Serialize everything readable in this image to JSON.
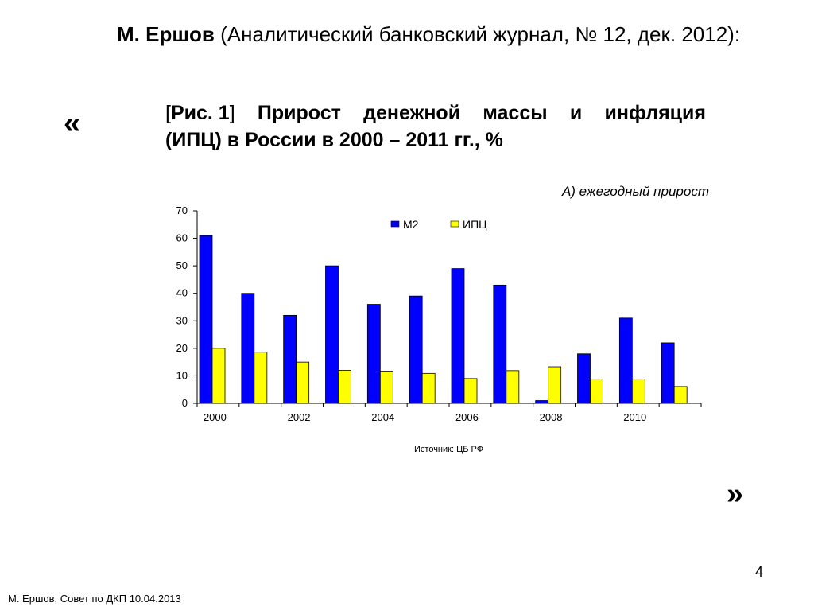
{
  "header": {
    "author": "М. Ершов",
    "source": "(Аналитический банковский журнал, № 12, дек. 2012):"
  },
  "quotes": {
    "open": "«",
    "close": "»"
  },
  "figure": {
    "bracket_open": "[",
    "prefix": "Рис. 1",
    "bracket_close": "]",
    "w1": "Прирост",
    "w2": "денежной",
    "w3": "массы",
    "w4": "и",
    "w5": "инфляция",
    "line2": "(ИПЦ) в России в 2000 – 2011 гг., %"
  },
  "chart_data": {
    "type": "bar",
    "title": "",
    "subtitle": "А) ежегодный прирост",
    "categories": [
      "2000",
      "2001",
      "2002",
      "2003",
      "2004",
      "2005",
      "2006",
      "2007",
      "2008",
      "2009",
      "2010",
      "2011"
    ],
    "x_tick_labels": [
      "2000",
      "",
      "2002",
      "",
      "2004",
      "",
      "2006",
      "",
      "2008",
      "",
      "2010",
      ""
    ],
    "y_ticks": [
      "0",
      "10",
      "20",
      "30",
      "40",
      "50",
      "60",
      "70"
    ],
    "ylim": [
      0,
      70
    ],
    "xlabel": "",
    "ylabel": "",
    "grid": false,
    "legend_position": "top-right",
    "series": [
      {
        "name": "М2",
        "color": "#0000ff",
        "values": [
          61,
          40,
          32,
          50,
          36,
          39,
          49,
          43,
          1,
          18,
          31,
          22
        ]
      },
      {
        "name": "ИПЦ",
        "color": "#ffff00",
        "values": [
          20,
          18.6,
          15,
          12,
          11.7,
          10.9,
          9,
          11.9,
          13.3,
          8.8,
          8.8,
          6.1
        ]
      }
    ]
  },
  "source_note": "Источник: ЦБ РФ",
  "page_number": "4",
  "footer": "М. Ершов, Совет по ДКП 10.04.2013"
}
